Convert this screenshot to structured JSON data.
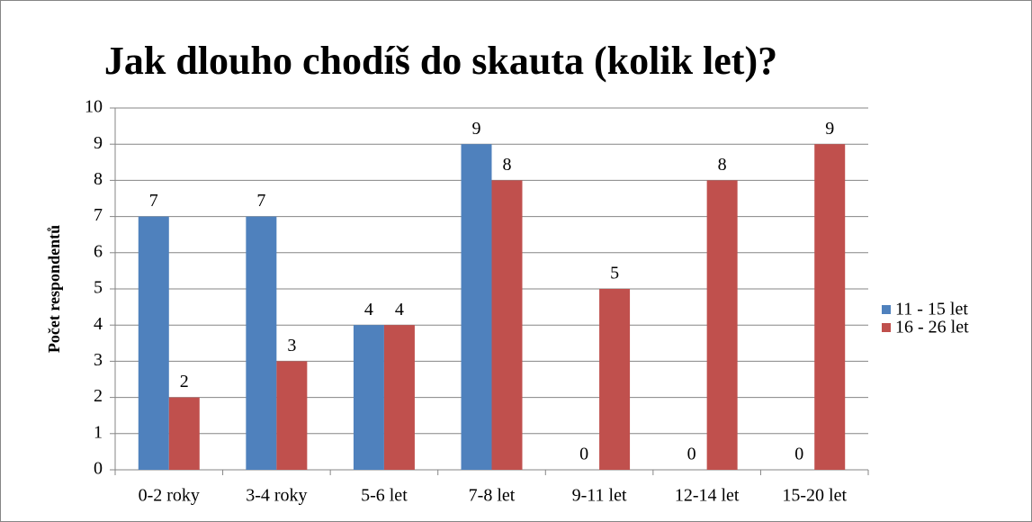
{
  "chart_data": {
    "type": "bar",
    "title": "Jak dlouho chodíš do skauta (kolik let)?",
    "y_label": "Počet respondentů",
    "categories": [
      "0-2 roky",
      "3-4 roky",
      "5-6 let",
      "7-8 let",
      "9-11 let",
      "12-14 let",
      "15-20 let"
    ],
    "series": [
      {
        "name": "11 - 15 let",
        "color": "#4f81bd",
        "values": [
          7,
          7,
          4,
          9,
          0,
          0,
          0
        ]
      },
      {
        "name": "16 - 26 let",
        "color": "#c0504d",
        "values": [
          2,
          3,
          4,
          8,
          5,
          8,
          9
        ]
      }
    ],
    "ylim": [
      0,
      10
    ],
    "yticks": [
      0,
      1,
      2,
      3,
      4,
      5,
      6,
      7,
      8,
      9,
      10
    ],
    "grid": true,
    "legend": "right",
    "data_labels": true
  }
}
